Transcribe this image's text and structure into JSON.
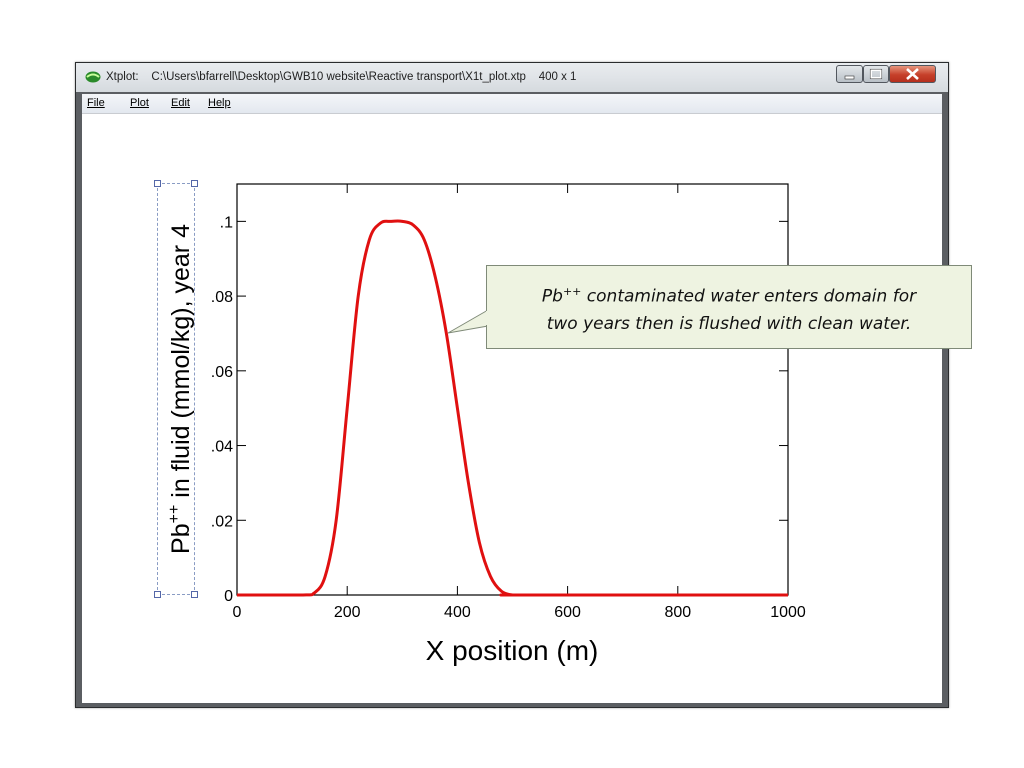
{
  "window": {
    "app_name": "Xtplot:",
    "path": "C:\\Users\\bfarrell\\Desktop\\GWB10 website\\Reactive transport\\X1t_plot.xtp",
    "size": "400 x 1"
  },
  "menu": {
    "file": "File",
    "plot": "Plot",
    "edit": "Edit",
    "help": "Help"
  },
  "chart_data": {
    "type": "line",
    "xlabel": "X position (m)",
    "ylabel": "Pb++ in fluid (mmol/kg), year 4",
    "xlim": [
      0,
      1000
    ],
    "ylim": [
      0,
      0.11
    ],
    "x_ticks": [
      0,
      200,
      400,
      600,
      800,
      1000
    ],
    "x_tick_labels": [
      "0",
      "200",
      "400",
      "600",
      "800",
      "1000"
    ],
    "y_ticks": [
      0,
      0.02,
      0.04,
      0.06,
      0.08,
      0.1
    ],
    "y_tick_labels": [
      "0",
      ".02",
      ".04",
      ".06",
      ".08",
      ".1"
    ],
    "series": [
      {
        "color": "#e01010",
        "x": [
          0,
          120,
          140,
          160,
          180,
          200,
          220,
          240,
          260,
          280,
          300,
          320,
          340,
          360,
          380,
          400,
          420,
          440,
          460,
          480,
          500,
          520,
          1000
        ],
        "y": [
          0,
          0,
          0.0005,
          0.005,
          0.02,
          0.05,
          0.08,
          0.095,
          0.0995,
          0.1,
          0.1,
          0.099,
          0.095,
          0.085,
          0.07,
          0.05,
          0.03,
          0.014,
          0.005,
          0.001,
          0,
          0,
          0
        ]
      }
    ]
  },
  "annotation": {
    "pb": "Pb",
    "charge": "++",
    "line1_rest": " contaminated water enters domain for",
    "line2": "two years then is flushed with clean water."
  },
  "ylabel_parts": {
    "pb": "Pb",
    "charge": "++",
    "rest": " in fluid (mmol/kg), year 4"
  }
}
